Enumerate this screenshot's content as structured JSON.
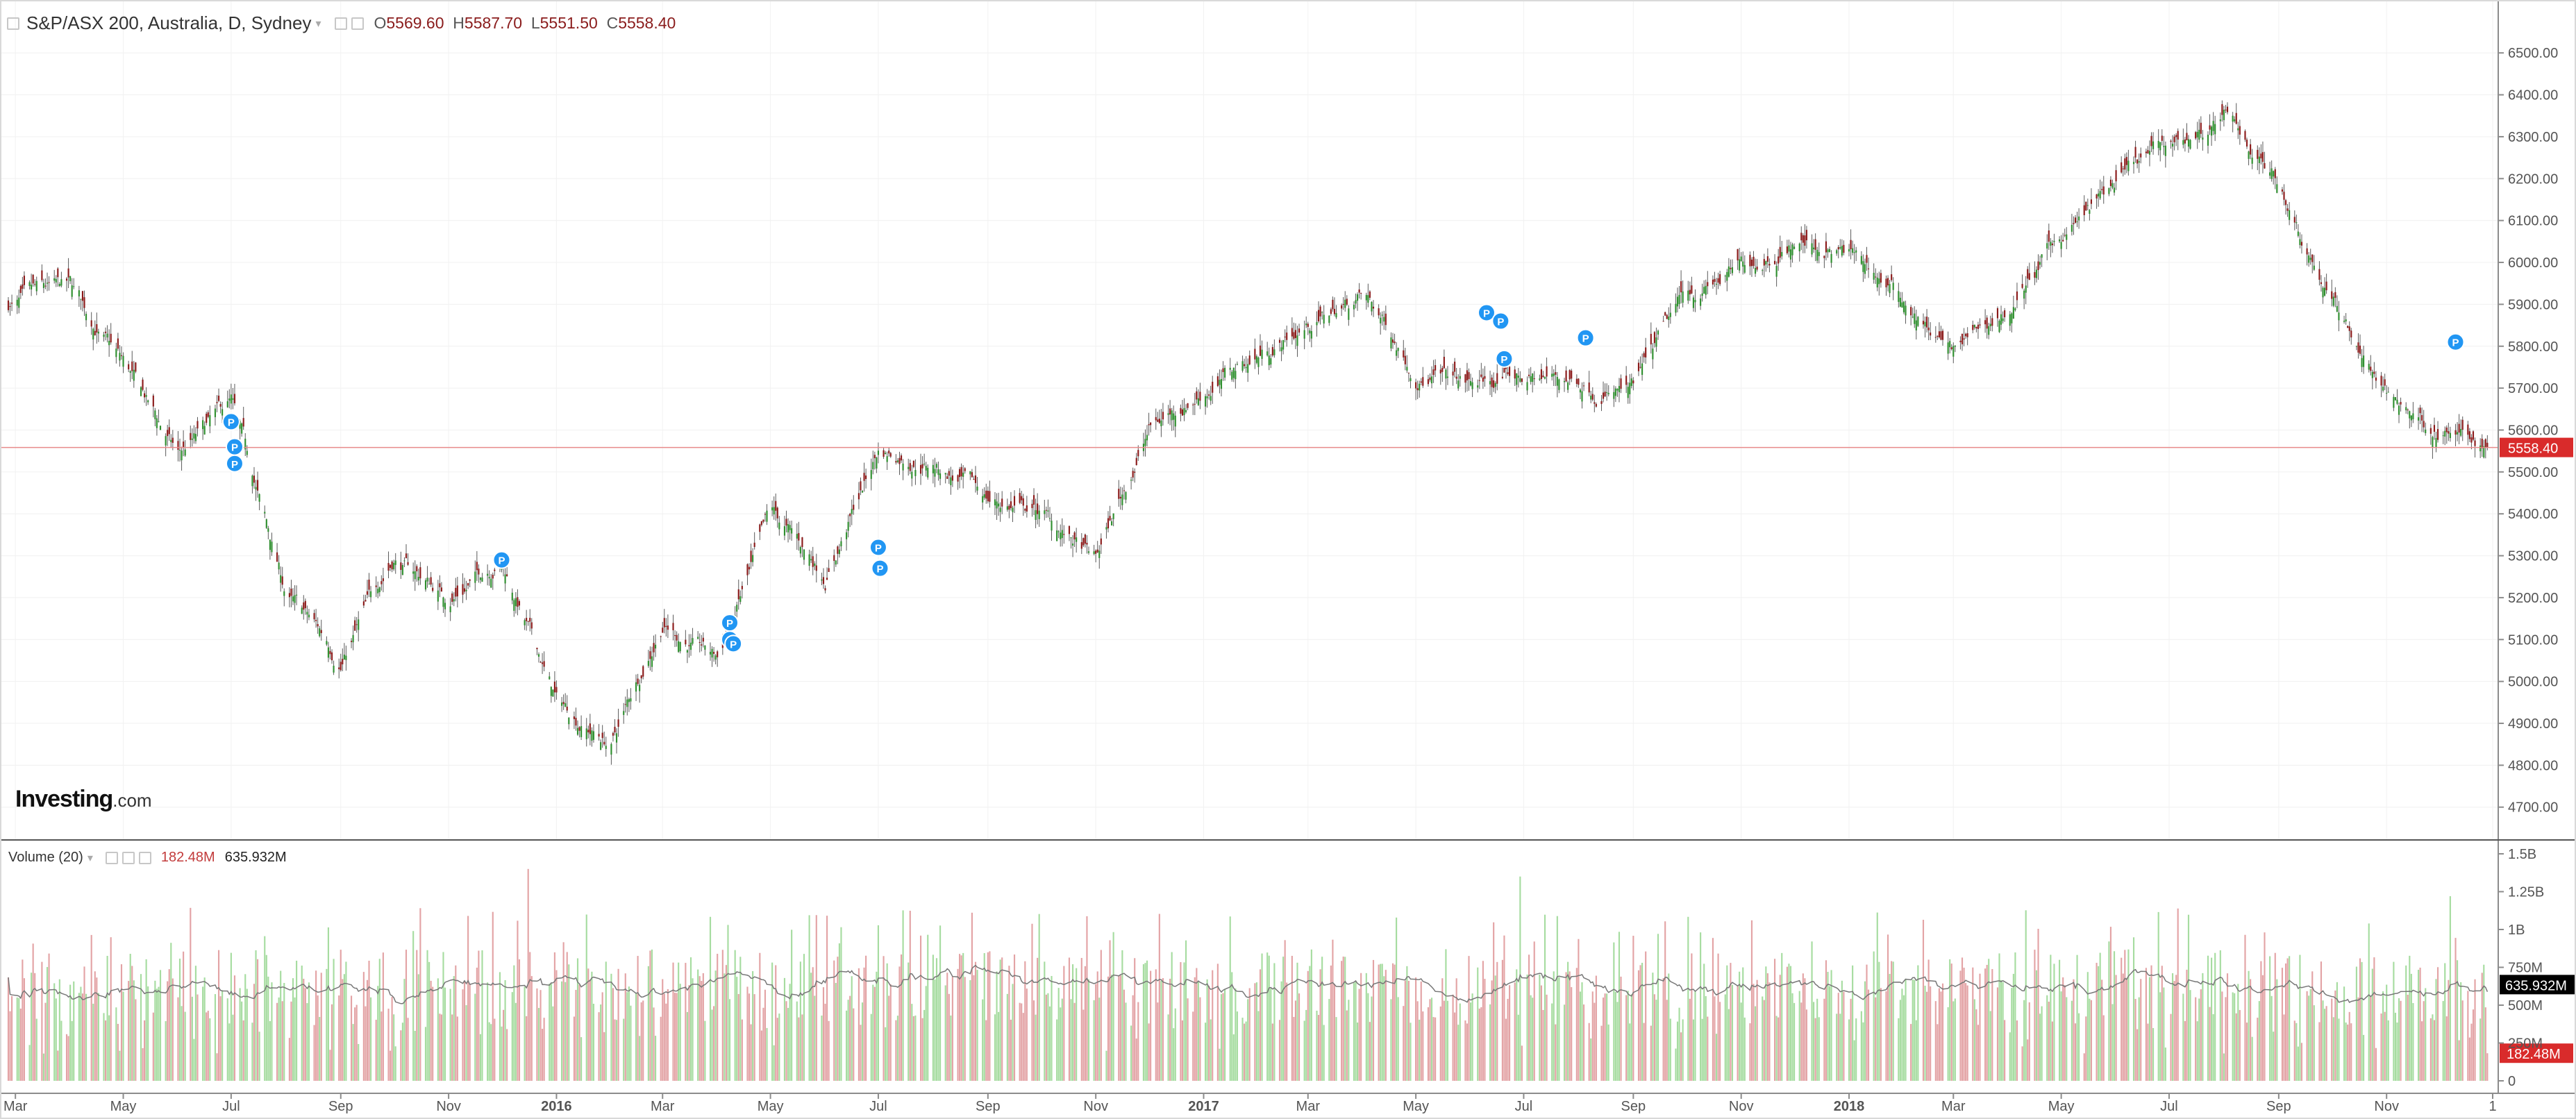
{
  "header": {
    "title": "S&P/ASX 200, Australia, D, Sydney",
    "open_label": "O",
    "open": "5569.60",
    "high_label": "H",
    "high": "5587.70",
    "low_label": "L",
    "low": "5551.50",
    "close_label": "C",
    "close": "5558.40"
  },
  "volume_header": {
    "title": "Volume (20)",
    "value": "182.48M",
    "ma_value": "635.932M"
  },
  "logo": {
    "brand": "Investing",
    "suffix": ".com"
  },
  "colors": {
    "up_candle": "#2f8f2f",
    "down_candle": "#8b1a1a",
    "up_volume": "#a6dca0",
    "down_volume": "#e3a3a5",
    "price_line": "#e88a8a",
    "price_tag": "#d92b2b",
    "ma_tag": "#000000",
    "marker": "#2196f3"
  },
  "chart_data": [
    {
      "type": "candlestick",
      "title": "S&P/ASX 200",
      "y_axis_ticks": [
        "6500.00",
        "6400.00",
        "6300.00",
        "6200.00",
        "6100.00",
        "6000.00",
        "5900.00",
        "5800.00",
        "5700.00",
        "5600.00",
        "5500.00",
        "5400.00",
        "5300.00",
        "5200.00",
        "5100.00",
        "5000.00",
        "4900.00",
        "4800.00",
        "4700.00"
      ],
      "ylim": [
        4630,
        6560
      ],
      "x_axis_ticks": [
        "Mar",
        "May",
        "Jul",
        "Sep",
        "Nov",
        "2016",
        "Mar",
        "May",
        "Jul",
        "Sep",
        "Nov",
        "2017",
        "Mar",
        "May",
        "Jul",
        "Sep",
        "Nov",
        "2018",
        "Mar",
        "May",
        "Jul",
        "Sep",
        "Nov",
        "1"
      ],
      "x_range": [
        "2015-03",
        "2018-12"
      ],
      "series": [
        {
          "dates": [
            "2015-03",
            "2015-04",
            "2015-05",
            "2015-06",
            "2015-07",
            "2015-08",
            "2015-09",
            "2015-10",
            "2015-11",
            "2015-12",
            "2016-01",
            "2016-02",
            "2016-03",
            "2016-04",
            "2016-05",
            "2016-06",
            "2016-07",
            "2016-08",
            "2016-09",
            "2016-10",
            "2016-11",
            "2016-12",
            "2017-01",
            "2017-02",
            "2017-03",
            "2017-04",
            "2017-05",
            "2017-06",
            "2017-07",
            "2017-08",
            "2017-09",
            "2017-10",
            "2017-11",
            "2017-12",
            "2018-01",
            "2018-02",
            "2018-03",
            "2018-04",
            "2018-05",
            "2018-06",
            "2018-07",
            "2018-08",
            "2018-09",
            "2018-10",
            "2018-11",
            "2018-12"
          ],
          "values": [
            5900,
            5920,
            5750,
            5530,
            5650,
            5200,
            5050,
            5300,
            5200,
            5300,
            4950,
            4850,
            5150,
            5050,
            5380,
            5250,
            5550,
            5530,
            5430,
            5400,
            5280,
            5600,
            5700,
            5780,
            5850,
            5920,
            5750,
            5700,
            5720,
            5720,
            5690,
            5910,
            5980,
            6060,
            6020,
            5910,
            5780,
            5880,
            6060,
            6180,
            6270,
            6340,
            6200,
            5920,
            5680,
            5600
          ]
        }
      ],
      "last_price": "5558.40",
      "last_value": 5558.4,
      "markers": [
        {
          "label": "P",
          "date": "2015-07-01",
          "value": 5620
        },
        {
          "label": "P",
          "date": "2015-07-03",
          "value": 5560
        },
        {
          "label": "P",
          "date": "2015-07-03",
          "value": 5520
        },
        {
          "label": "P",
          "date": "2015-12-01",
          "value": 5290
        },
        {
          "label": "P",
          "date": "2016-04-08",
          "value": 5140
        },
        {
          "label": "P",
          "date": "2016-04-08",
          "value": 5100
        },
        {
          "label": "P",
          "date": "2016-04-10",
          "value": 5090
        },
        {
          "label": "P",
          "date": "2016-07-01",
          "value": 5320
        },
        {
          "label": "P",
          "date": "2016-07-02",
          "value": 5270
        },
        {
          "label": "P",
          "date": "2017-06-10",
          "value": 5880
        },
        {
          "label": "P",
          "date": "2017-06-18",
          "value": 5860
        },
        {
          "label": "P",
          "date": "2017-06-20",
          "value": 5770
        },
        {
          "label": "P",
          "date": "2017-08-05",
          "value": 5820
        },
        {
          "label": "P",
          "date": "2018-12-10",
          "value": 5810
        }
      ]
    },
    {
      "type": "bar",
      "title": "Volume (20)",
      "y_axis_ticks": [
        "1.5B",
        "1.25B",
        "1B",
        "750M",
        "500M",
        "250M",
        "0"
      ],
      "ylim": [
        0,
        1500000000
      ],
      "levels": [
        "low",
        "mid",
        "high"
      ],
      "level_values": [
        430000000,
        620000000,
        900000000
      ],
      "last_volume": "182.48M",
      "last_ma": "635.932M",
      "spike_values": [
        1400000000,
        1350000000,
        1220000000
      ]
    }
  ]
}
